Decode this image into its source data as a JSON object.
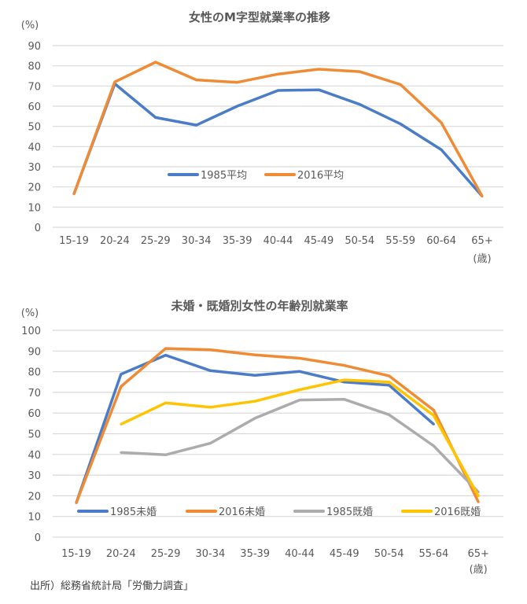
{
  "chart_data": [
    {
      "type": "line",
      "title": "女性のM字型就業率の推移",
      "ylabel": "(%)",
      "xunit": "(歳)",
      "ylim": [
        0,
        90
      ],
      "yticks": [
        0,
        10,
        20,
        30,
        40,
        50,
        60,
        70,
        80,
        90
      ],
      "grid": true,
      "legend_placement": "center",
      "categories": [
        "15-19",
        "20-24",
        "25-29",
        "30-34",
        "35-39",
        "40-44",
        "45-49",
        "50-54",
        "55-59",
        "60-64",
        "65+"
      ],
      "series": [
        {
          "name": "1985平均",
          "color": "#4a7cc7",
          "values": [
            16.5,
            71.1,
            54.4,
            50.6,
            60.0,
            67.8,
            68.1,
            60.9,
            51.2,
            38.4,
            15.4
          ]
        },
        {
          "name": "2016平均",
          "color": "#f08b35",
          "values": [
            16.5,
            72.0,
            81.8,
            73.0,
            71.8,
            75.9,
            78.3,
            77.1,
            70.7,
            51.8,
            15.4
          ]
        }
      ]
    },
    {
      "type": "line",
      "title": "未婚・既婚別女性の年齢別就業率",
      "ylabel": "(%)",
      "xunit": "(歳)",
      "ylim": [
        0,
        100
      ],
      "yticks": [
        0,
        10,
        20,
        30,
        40,
        50,
        60,
        70,
        80,
        90,
        100
      ],
      "grid": true,
      "legend_placement": "bottom-inside",
      "categories": [
        "15-19",
        "20-24",
        "25-29",
        "30-34",
        "35-39",
        "40-44",
        "45-49",
        "50-54",
        "55-64",
        "65+"
      ],
      "series": [
        {
          "name": "1985未婚",
          "color": "#4a7cc7",
          "values": [
            16.6,
            78.8,
            88.0,
            80.5,
            78.2,
            80.1,
            75.0,
            73.5,
            54.6,
            null
          ]
        },
        {
          "name": "2016未婚",
          "color": "#f08b35",
          "values": [
            16.6,
            72.8,
            91.2,
            90.6,
            88.1,
            86.5,
            83.0,
            78.0,
            61.4,
            17.0
          ]
        },
        {
          "name": "1985既婚",
          "color": "#acacac",
          "values": [
            null,
            40.9,
            39.8,
            45.4,
            57.5,
            66.3,
            66.6,
            59.2,
            44.1,
            21.8
          ]
        },
        {
          "name": "2016既婚",
          "color": "#ffc300",
          "values": [
            null,
            54.6,
            64.9,
            62.8,
            65.7,
            71.3,
            76.0,
            75.0,
            58.8,
            19.9
          ]
        }
      ]
    }
  ],
  "source": "出所）総務省統計局「労働力調査」"
}
